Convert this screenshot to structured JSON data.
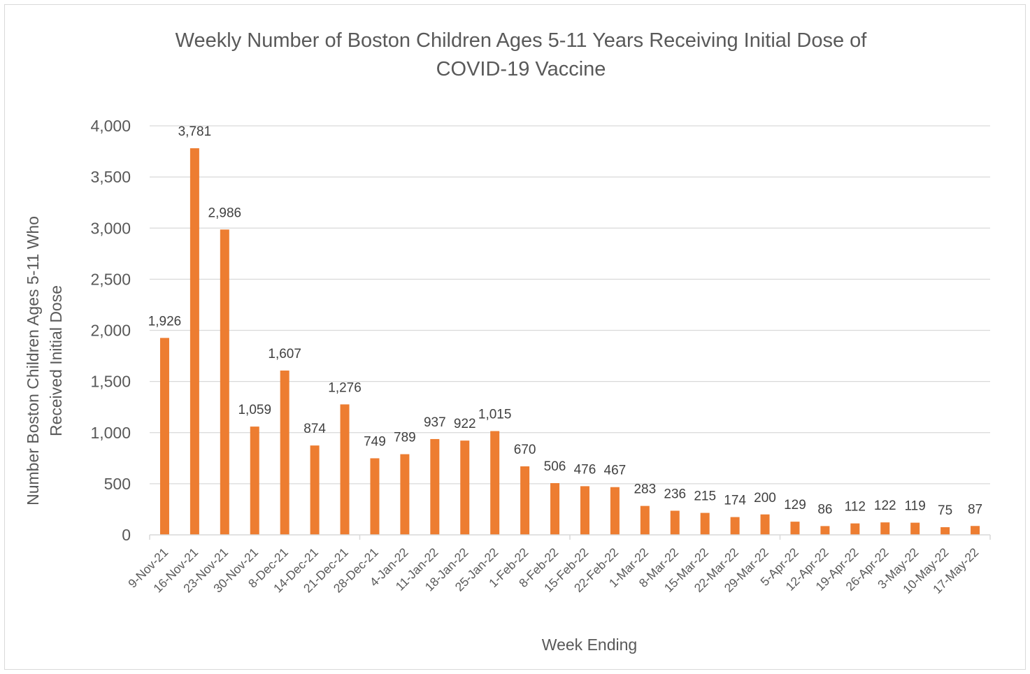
{
  "chart_data": {
    "type": "bar",
    "title_lines": [
      "Weekly Number of Boston Children Ages 5-11 Years Receiving Initial Dose of",
      "COVID-19 Vaccine"
    ],
    "xlabel": "Week Ending",
    "ylabel_lines": [
      "Number Boston Children Ages 5-11 Who",
      "Received Initial Dose"
    ],
    "ylim": [
      0,
      4000
    ],
    "yticks": [
      {
        "value": 0,
        "label": "0"
      },
      {
        "value": 500,
        "label": "500"
      },
      {
        "value": 1000,
        "label": "1,000"
      },
      {
        "value": 1500,
        "label": "1,500"
      },
      {
        "value": 2000,
        "label": "2,000"
      },
      {
        "value": 2500,
        "label": "2,500"
      },
      {
        "value": 3000,
        "label": "3,000"
      },
      {
        "value": 3500,
        "label": "3,500"
      },
      {
        "value": 4000,
        "label": "4,000"
      }
    ],
    "grid": true,
    "legend": "none",
    "bar_color": "#ED7D31",
    "categories": [
      "9-Nov-21",
      "16-Nov-21",
      "23-Nov-21",
      "30-Nov-21",
      "8-Dec-21",
      "14-Dec-21",
      "21-Dec-21",
      "28-Dec-21",
      "4-Jan-22",
      "11-Jan-22",
      "18-Jan-22",
      "25-Jan-22",
      "1-Feb-22",
      "8-Feb-22",
      "15-Feb-22",
      "22-Feb-22",
      "1-Mar-22",
      "8-Mar-22",
      "15-Mar-22",
      "22-Mar-22",
      "29-Mar-22",
      "5-Apr-22",
      "12-Apr-22",
      "19-Apr-22",
      "26-Apr-22",
      "3-May-22",
      "10-May-22",
      "17-May-22"
    ],
    "values": [
      1926,
      3781,
      2986,
      1059,
      1607,
      874,
      1276,
      749,
      789,
      937,
      922,
      1015,
      670,
      506,
      476,
      467,
      283,
      236,
      215,
      174,
      200,
      129,
      86,
      112,
      122,
      119,
      75,
      87
    ],
    "value_labels": [
      "1,926",
      "3,781",
      "2,986",
      "1,059",
      "1,607",
      "874",
      "1,276",
      "749",
      "789",
      "937",
      "922",
      "1,015",
      "670",
      "506",
      "476",
      "467",
      "283",
      "236",
      "215",
      "174",
      "200",
      "129",
      "86",
      "112",
      "122",
      "119",
      "75",
      "87"
    ]
  }
}
